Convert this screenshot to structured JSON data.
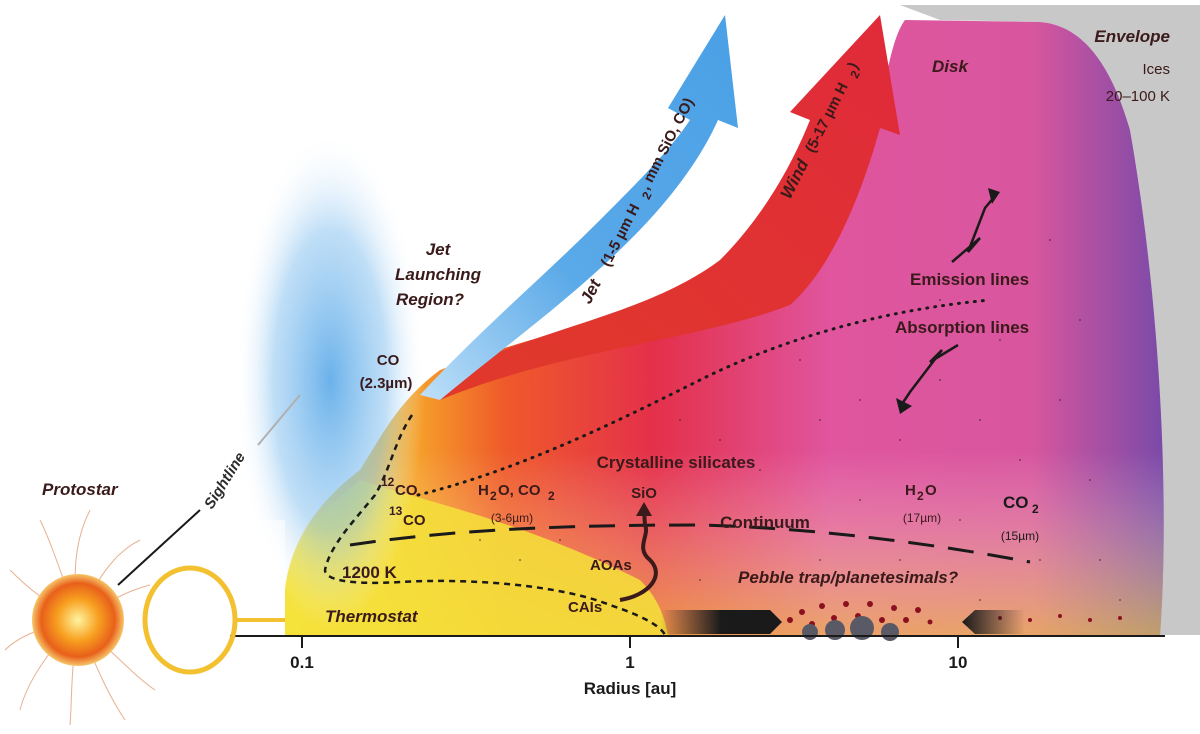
{
  "labels": {
    "protostar": "Protostar",
    "sightline": "Sightline",
    "jet_launching": [
      "Jet",
      "Launching",
      "Region?"
    ],
    "co_inner": "CO",
    "co_inner_wl": "(2.3µm)",
    "jet_prefix": "Jet",
    "jet_suffix": "(1-5 µm H",
    "jet_suffix2": ", mm SiO, CO)",
    "wind_prefix": "Wind",
    "wind_suffix": "(5-17 µm H",
    "wind_suffix2": ")",
    "disk": "Disk",
    "envelope": "Envelope",
    "ices": "Ices",
    "ice_temp": "20–100 K",
    "emission": "Emission lines",
    "absorption": "Absorption lines",
    "co12": "CO",
    "co12_sup": "12",
    "co13": "CO",
    "co13_sup": "13",
    "h2o_co2": "H",
    "h2o_co2_sub": "2",
    "h2o_co2_rest": "O, CO",
    "h2o_co2_sub2": "2",
    "h2o_co2_wl": "(3-6µm)",
    "crystalline": "Crystalline silicates",
    "sio": "SiO",
    "continuum": "Continuum",
    "h2o_right": "H",
    "h2o_right_sub": "2",
    "h2o_right_rest": "O",
    "h2o_right_wl": "(17µm)",
    "co2_right": "CO",
    "co2_right_sub": "2",
    "co2_right_wl": "(15µm)",
    "temp_1200": "1200 K",
    "aoas": "AOAs",
    "cais": "CAIs",
    "thermostat": "Thermostat",
    "pebble": "Pebble trap/planetesimals?"
  },
  "axis": {
    "ticks": [
      "0.1",
      "1",
      "10"
    ],
    "xlabel": "Radius [au]"
  },
  "colors": {
    "jet_blue": "#5aa9e8",
    "wind_red": "#e02a3a",
    "disk_pink": "#e0559e",
    "envelope_gray": "#c8c8c8",
    "star_orange": "#f07a20",
    "thermostat_yellow": "#f5e23a"
  }
}
